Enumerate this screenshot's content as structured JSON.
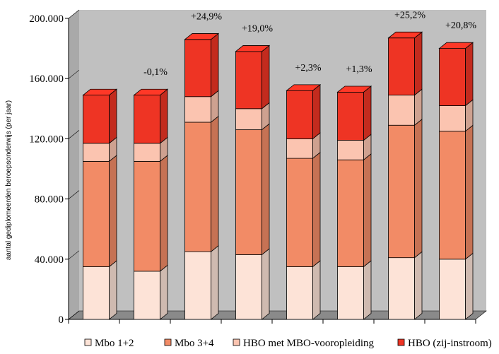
{
  "chart_data": {
    "type": "bar",
    "stacked": true,
    "three_d": true,
    "title": "",
    "xlabel": "",
    "ylabel": "aantal gediplomeerden beroepsonderwijs (per jaar)",
    "ylim": [
      0,
      200000
    ],
    "yticks": [
      0,
      40000,
      80000,
      120000,
      160000,
      200000
    ],
    "ytick_labels": [
      "0",
      "40.000",
      "80.000",
      "120.000",
      "160.000",
      "200.000"
    ],
    "grid": false,
    "legend_position": "bottom",
    "categories": [
      "",
      "",
      "",
      "",
      "",
      "",
      "",
      ""
    ],
    "series": [
      {
        "name": "Mbo 1+2",
        "color": "#fde3d7",
        "values": [
          35000,
          32000,
          45000,
          43000,
          35000,
          35000,
          41000,
          40000
        ]
      },
      {
        "name": "Mbo 3+4",
        "color": "#f28b66",
        "values": [
          70000,
          73000,
          86000,
          83000,
          72000,
          71000,
          88000,
          85000
        ]
      },
      {
        "name": "HBO met MBO-vooropleiding",
        "color": "#fbc4b0",
        "values": [
          12000,
          12000,
          17000,
          14000,
          13000,
          13000,
          20000,
          17000
        ]
      },
      {
        "name": "HBO (zij-instroom)",
        "color": "#ee3424",
        "values": [
          32000,
          32000,
          38000,
          38000,
          32000,
          32000,
          38000,
          38000
        ]
      }
    ],
    "annotations": [
      "",
      "-0,1%",
      "+24,9%",
      "+19,0%",
      "+2,3%",
      "+1,3%",
      "+25,2%",
      "+20,8%"
    ]
  }
}
